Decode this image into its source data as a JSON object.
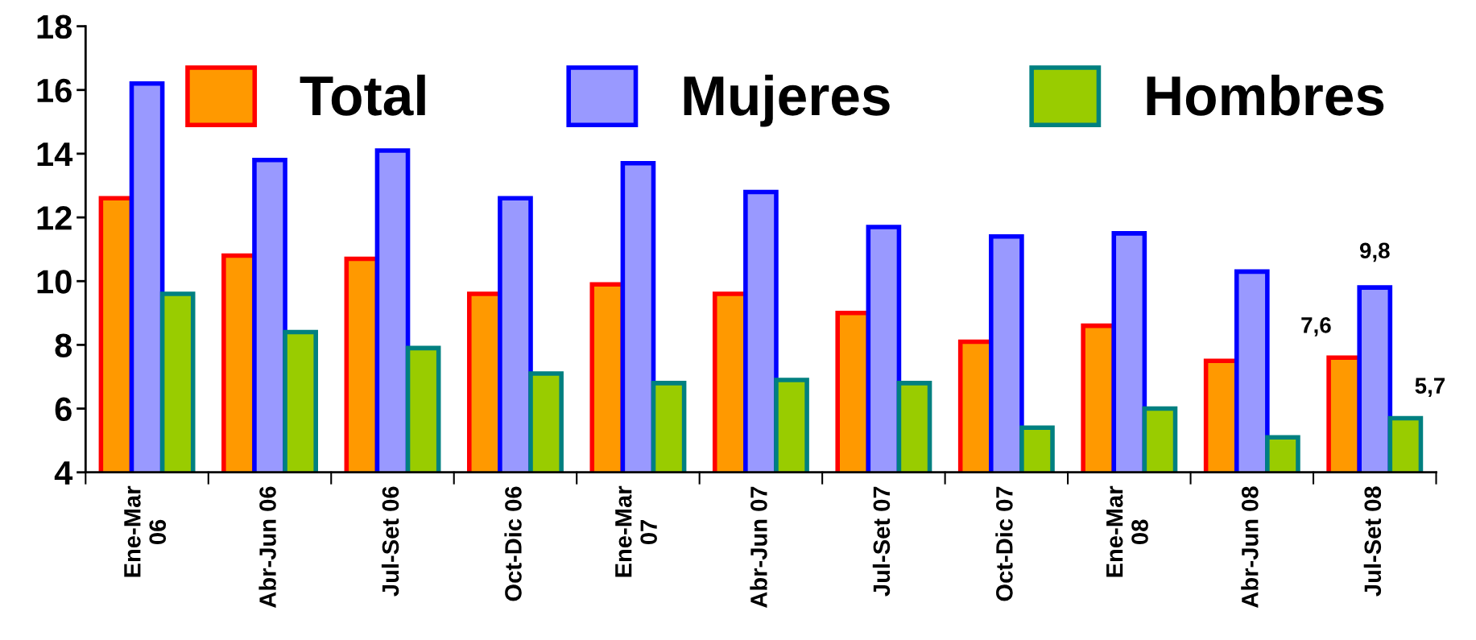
{
  "chart_data": {
    "type": "bar",
    "categories": [
      "Ene-Mar\n06",
      "Abr-Jun 06",
      "Jul-Set 06",
      "Oct-Dic 06",
      "Ene-Mar\n07",
      "Abr-Jun 07",
      "Jul-Set 07",
      "Oct-Dic 07",
      "Ene-Mar\n08",
      "Abr-Jun 08",
      "Jul-Set 08"
    ],
    "series": [
      {
        "name": "Total",
        "color": "#ff9900",
        "values": [
          12.6,
          10.8,
          10.7,
          9.6,
          9.9,
          9.6,
          9.0,
          8.1,
          8.6,
          7.5,
          7.6
        ],
        "value_labels": [
          null,
          null,
          null,
          null,
          null,
          null,
          null,
          null,
          null,
          null,
          "7,6"
        ]
      },
      {
        "name": "Mujeres",
        "color": "#9999ff",
        "values": [
          16.2,
          13.8,
          14.1,
          12.6,
          13.7,
          12.8,
          11.7,
          11.4,
          11.5,
          10.3,
          9.8
        ],
        "value_labels": [
          null,
          null,
          null,
          null,
          null,
          null,
          null,
          null,
          null,
          null,
          "9,8"
        ]
      },
      {
        "name": "Hombres",
        "color": "#99cc00",
        "values": [
          9.6,
          8.4,
          7.9,
          7.1,
          6.8,
          6.9,
          6.8,
          5.4,
          6.0,
          5.1,
          5.7
        ],
        "value_labels": [
          null,
          null,
          null,
          null,
          null,
          null,
          null,
          null,
          null,
          null,
          "5,7"
        ]
      }
    ],
    "ylim": [
      4,
      18
    ],
    "yticks": [
      4,
      6,
      8,
      10,
      12,
      14,
      16,
      18
    ],
    "legend": "top right",
    "grid": false
  }
}
